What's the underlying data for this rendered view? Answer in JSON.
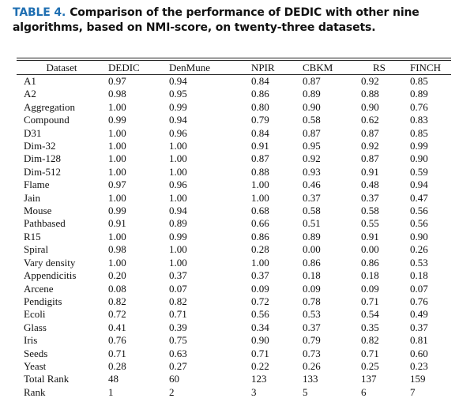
{
  "caption": {
    "label": "TABLE 4.",
    "text": "Comparison of the performance of DEDIC with other nine algorithms, based on NMI-score, on twenty-three datasets."
  },
  "table": {
    "headers": [
      "Dataset",
      "DEDIC",
      "DenMune",
      "NPIR",
      "CBKM",
      "RS",
      "FINCH"
    ],
    "rows": [
      [
        "A1",
        "0.97",
        "0.94",
        "0.84",
        "0.87",
        "0.92",
        "0.85"
      ],
      [
        "A2",
        "0.98",
        "0.95",
        "0.86",
        "0.89",
        "0.88",
        "0.89"
      ],
      [
        "Aggregation",
        "1.00",
        "0.99",
        "0.80",
        "0.90",
        "0.90",
        "0.76"
      ],
      [
        "Compound",
        "0.99",
        "0.94",
        "0.79",
        "0.58",
        "0.62",
        "0.83"
      ],
      [
        "D31",
        "1.00",
        "0.96",
        "0.84",
        "0.87",
        "0.87",
        "0.85"
      ],
      [
        "Dim-32",
        "1.00",
        "1.00",
        "0.91",
        "0.95",
        "0.92",
        "0.99"
      ],
      [
        "Dim-128",
        "1.00",
        "1.00",
        "0.87",
        "0.92",
        "0.87",
        "0.90"
      ],
      [
        "Dim-512",
        "1.00",
        "1.00",
        "0.88",
        "0.93",
        "0.91",
        "0.59"
      ],
      [
        "Flame",
        "0.97",
        "0.96",
        "1.00",
        "0.46",
        "0.48",
        "0.94"
      ],
      [
        "Jain",
        "1.00",
        "1.00",
        "1.00",
        "0.37",
        "0.37",
        "0.47"
      ],
      [
        "Mouse",
        "0.99",
        "0.94",
        "0.68",
        "0.58",
        "0.58",
        "0.56"
      ],
      [
        "Pathbased",
        "0.91",
        "0.89",
        "0.66",
        "0.51",
        "0.55",
        "0.56"
      ],
      [
        "R15",
        "1.00",
        "0.99",
        "0.86",
        "0.89",
        "0.91",
        "0.90"
      ],
      [
        "Spiral",
        "0.98",
        "1.00",
        "0.28",
        "0.00",
        "0.00",
        "0.26"
      ],
      [
        "Vary density",
        "1.00",
        "1.00",
        "1.00",
        "0.86",
        "0.86",
        "0.53"
      ],
      [
        "Appendicitis",
        "0.20",
        "0.37",
        "0.37",
        "0.18",
        "0.18",
        "0.18"
      ],
      [
        "Arcene",
        "0.08",
        "0.07",
        "0.09",
        "0.09",
        "0.09",
        "0.07"
      ],
      [
        "Pendigits",
        "0.82",
        "0.82",
        "0.72",
        "0.78",
        "0.71",
        "0.76"
      ],
      [
        "Ecoli",
        "0.72",
        "0.71",
        "0.56",
        "0.53",
        "0.54",
        "0.49"
      ],
      [
        "Glass",
        "0.41",
        "0.39",
        "0.34",
        "0.37",
        "0.35",
        "0.37"
      ],
      [
        "Iris",
        "0.76",
        "0.75",
        "0.90",
        "0.79",
        "0.82",
        "0.81"
      ],
      [
        "Seeds",
        "0.71",
        "0.63",
        "0.71",
        "0.73",
        "0.71",
        "0.60"
      ],
      [
        "Yeast",
        "0.28",
        "0.27",
        "0.22",
        "0.26",
        "0.25",
        "0.23"
      ],
      [
        "Total Rank",
        "48",
        "60",
        "123",
        "133",
        "137",
        "159"
      ],
      [
        "Rank",
        "1",
        "2",
        "3",
        "5",
        "6",
        "7"
      ]
    ]
  }
}
